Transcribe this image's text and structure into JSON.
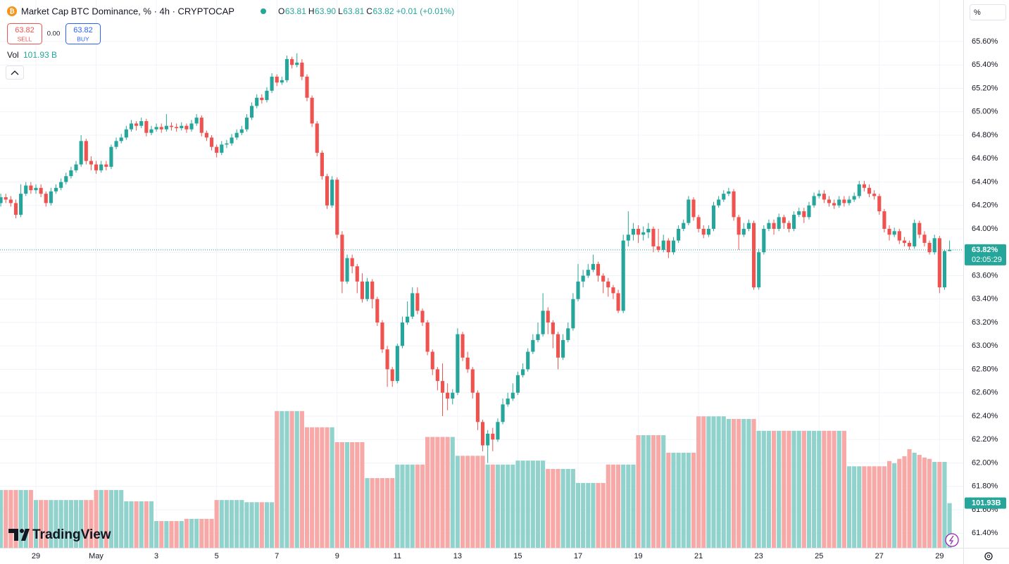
{
  "chart_data": {
    "type": "candlestick",
    "title": "Market Cap BTC Dominance, % · 4h · CRYPTOCAP",
    "ohlc_legend": [
      {
        "label": "O",
        "value": "63.81"
      },
      {
        "label": "H",
        "value": "63.90"
      },
      {
        "label": "L",
        "value": "63.81"
      },
      {
        "label": "C",
        "value": "63.82"
      }
    ],
    "change_label": "+0.01 (+0.01%)",
    "sell": {
      "price": "63.82",
      "label": "SELL"
    },
    "spread": "0.00",
    "buy": {
      "price": "63.82",
      "label": "BUY"
    },
    "volume_legend": {
      "label": "Vol",
      "value": "101.93 B"
    },
    "scale_button": "%",
    "price_tag": "63.82%",
    "countdown": "02:05:29",
    "volume_tag": "101.93B",
    "brand": "TradingView",
    "up_color": "#26a69a",
    "down_color": "#ef5350",
    "volume_up_color": "#92d2cc",
    "volume_down_color": "#f7a9a7",
    "grid": true,
    "ylim": [
      61.275,
      65.955
    ],
    "yticks": [
      {
        "value": 61.4,
        "label": "61.40%"
      },
      {
        "value": 61.6,
        "label": "61.60%"
      },
      {
        "value": 61.8,
        "label": "61.80%"
      },
      {
        "value": 62.0,
        "label": "62.00%"
      },
      {
        "value": 62.2,
        "label": "62.20%"
      },
      {
        "value": 62.4,
        "label": "62.40%"
      },
      {
        "value": 62.6,
        "label": "62.60%"
      },
      {
        "value": 62.8,
        "label": "62.80%"
      },
      {
        "value": 63.0,
        "label": "63.00%"
      },
      {
        "value": 63.2,
        "label": "63.20%"
      },
      {
        "value": 63.4,
        "label": "63.40%"
      },
      {
        "value": 63.6,
        "label": "63.60%"
      },
      {
        "value": 63.8,
        "label": "63.80%"
      },
      {
        "value": 64.0,
        "label": "64.00%"
      },
      {
        "value": 64.2,
        "label": "64.20%"
      },
      {
        "value": 64.4,
        "label": "64.40%"
      },
      {
        "value": 64.6,
        "label": "64.60%"
      },
      {
        "value": 64.8,
        "label": "64.80%"
      },
      {
        "value": 65.0,
        "label": "65.00%"
      },
      {
        "value": 65.2,
        "label": "65.20%"
      },
      {
        "value": 65.4,
        "label": "65.40%"
      },
      {
        "value": 65.6,
        "label": "65.60%"
      }
    ],
    "xlim": [
      -0.153,
      191.72
    ],
    "xticks": [
      {
        "value": 7,
        "label": "29"
      },
      {
        "value": 19,
        "label": "May"
      },
      {
        "value": 31,
        "label": "3"
      },
      {
        "value": 43,
        "label": "5"
      },
      {
        "value": 55,
        "label": "7"
      },
      {
        "value": 67,
        "label": "9"
      },
      {
        "value": 79,
        "label": "11"
      },
      {
        "value": 91,
        "label": "13"
      },
      {
        "value": 103,
        "label": "15"
      },
      {
        "value": 115,
        "label": "17"
      },
      {
        "value": 127,
        "label": "19"
      },
      {
        "value": 139,
        "label": "21"
      },
      {
        "value": 151,
        "label": "23"
      },
      {
        "value": 163,
        "label": "25"
      },
      {
        "value": 175,
        "label": "27"
      },
      {
        "value": 187,
        "label": "29"
      }
    ],
    "volume_ylim": [
      0,
      1250
    ],
    "candles": [
      [
        64.22,
        64.3,
        64.19,
        64.27
      ],
      [
        64.27,
        64.3,
        64.22,
        64.25
      ],
      [
        64.25,
        64.28,
        64.19,
        64.22
      ],
      [
        64.22,
        64.25,
        64.09,
        64.12
      ],
      [
        64.12,
        64.38,
        64.1,
        64.3
      ],
      [
        64.3,
        64.4,
        64.28,
        64.37
      ],
      [
        64.37,
        64.4,
        64.3,
        64.33
      ],
      [
        64.33,
        64.38,
        64.3,
        64.35
      ],
      [
        64.35,
        64.38,
        64.27,
        64.3
      ],
      [
        64.3,
        64.32,
        64.19,
        64.22
      ],
      [
        64.22,
        64.35,
        64.2,
        64.32
      ],
      [
        64.32,
        64.38,
        64.3,
        64.35
      ],
      [
        64.35,
        64.43,
        64.33,
        64.4
      ],
      [
        64.4,
        64.48,
        64.38,
        64.45
      ],
      [
        64.45,
        64.53,
        64.43,
        64.5
      ],
      [
        64.5,
        64.58,
        64.48,
        64.55
      ],
      [
        64.55,
        64.8,
        64.53,
        64.75
      ],
      [
        64.75,
        64.77,
        64.55,
        64.58
      ],
      [
        64.58,
        64.62,
        64.5,
        64.55
      ],
      [
        64.55,
        64.58,
        64.47,
        64.5
      ],
      [
        64.5,
        64.58,
        64.48,
        64.55
      ],
      [
        64.55,
        64.58,
        64.5,
        64.53
      ],
      [
        64.53,
        64.72,
        64.51,
        64.7
      ],
      [
        64.7,
        64.78,
        64.68,
        64.75
      ],
      [
        64.75,
        64.81,
        64.73,
        64.78
      ],
      [
        64.78,
        64.88,
        64.76,
        64.85
      ],
      [
        64.85,
        64.93,
        64.83,
        64.9
      ],
      [
        64.9,
        64.92,
        64.84,
        64.88
      ],
      [
        64.88,
        64.95,
        64.86,
        64.92
      ],
      [
        64.92,
        64.94,
        64.79,
        64.82
      ],
      [
        64.82,
        64.88,
        64.8,
        64.85
      ],
      [
        64.85,
        64.9,
        64.83,
        64.87
      ],
      [
        64.87,
        64.9,
        64.82,
        64.85
      ],
      [
        64.85,
        64.98,
        64.83,
        64.88
      ],
      [
        64.88,
        64.91,
        64.84,
        64.87
      ],
      [
        64.87,
        64.9,
        64.83,
        64.86
      ],
      [
        64.86,
        64.91,
        64.84,
        64.88
      ],
      [
        64.88,
        64.9,
        64.82,
        64.85
      ],
      [
        64.85,
        64.93,
        64.83,
        64.9
      ],
      [
        64.9,
        64.98,
        64.88,
        64.95
      ],
      [
        64.95,
        64.97,
        64.79,
        64.82
      ],
      [
        64.82,
        64.84,
        64.75,
        64.78
      ],
      [
        64.78,
        64.8,
        64.67,
        64.7
      ],
      [
        64.7,
        64.72,
        64.61,
        64.65
      ],
      [
        64.65,
        64.75,
        64.63,
        64.72
      ],
      [
        64.72,
        64.76,
        64.69,
        64.73
      ],
      [
        64.73,
        64.81,
        64.71,
        64.78
      ],
      [
        64.78,
        64.85,
        64.76,
        64.82
      ],
      [
        64.82,
        64.88,
        64.8,
        64.85
      ],
      [
        64.85,
        64.98,
        64.83,
        64.95
      ],
      [
        64.95,
        65.08,
        64.93,
        65.05
      ],
      [
        65.05,
        65.15,
        65.03,
        65.12
      ],
      [
        65.12,
        65.15,
        65.07,
        65.1
      ],
      [
        65.1,
        65.21,
        65.08,
        65.18
      ],
      [
        65.18,
        65.33,
        65.16,
        65.3
      ],
      [
        65.3,
        65.32,
        65.22,
        65.25
      ],
      [
        65.25,
        65.3,
        65.23,
        65.27
      ],
      [
        65.27,
        65.48,
        65.25,
        65.45
      ],
      [
        65.45,
        65.47,
        65.37,
        65.4
      ],
      [
        65.4,
        65.5,
        65.38,
        65.42
      ],
      [
        65.42,
        65.45,
        65.27,
        65.3
      ],
      [
        65.3,
        65.32,
        65.09,
        65.12
      ],
      [
        65.12,
        65.14,
        64.87,
        64.9
      ],
      [
        64.9,
        64.92,
        64.62,
        64.65
      ],
      [
        64.65,
        64.67,
        64.42,
        64.45
      ],
      [
        64.45,
        64.47,
        64.17,
        64.2
      ],
      [
        64.2,
        64.45,
        64.18,
        64.42
      ],
      [
        64.42,
        64.44,
        63.92,
        63.95
      ],
      [
        63.95,
        63.98,
        63.45,
        63.55
      ],
      [
        63.55,
        63.78,
        63.53,
        63.75
      ],
      [
        63.75,
        63.78,
        63.62,
        63.68
      ],
      [
        63.68,
        63.7,
        63.45,
        63.55
      ],
      [
        63.55,
        63.62,
        63.37,
        63.4
      ],
      [
        63.4,
        63.58,
        63.38,
        63.55
      ],
      [
        63.55,
        63.57,
        63.32,
        63.4
      ],
      [
        63.4,
        63.42,
        63.17,
        63.2
      ],
      [
        63.2,
        63.22,
        62.94,
        62.97
      ],
      [
        62.97,
        63.0,
        62.65,
        62.8
      ],
      [
        62.8,
        62.82,
        62.65,
        62.7
      ],
      [
        62.7,
        63.02,
        62.68,
        63.0
      ],
      [
        63.0,
        63.25,
        62.98,
        63.2
      ],
      [
        63.2,
        63.38,
        63.18,
        63.25
      ],
      [
        63.25,
        63.5,
        63.23,
        63.45
      ],
      [
        63.45,
        63.5,
        63.27,
        63.3
      ],
      [
        63.3,
        63.32,
        63.17,
        63.2
      ],
      [
        63.2,
        63.22,
        62.92,
        62.95
      ],
      [
        62.95,
        62.97,
        62.75,
        62.8
      ],
      [
        62.8,
        62.82,
        62.62,
        62.7
      ],
      [
        62.7,
        62.85,
        62.4,
        62.6
      ],
      [
        62.6,
        62.68,
        62.45,
        62.55
      ],
      [
        62.55,
        62.63,
        62.5,
        62.6
      ],
      [
        62.6,
        63.15,
        62.58,
        63.1
      ],
      [
        63.1,
        63.12,
        62.87,
        62.9
      ],
      [
        62.9,
        62.95,
        62.77,
        62.8
      ],
      [
        62.8,
        62.82,
        62.55,
        62.6
      ],
      [
        62.6,
        62.62,
        62.28,
        62.35
      ],
      [
        62.35,
        62.37,
        62.1,
        62.15
      ],
      [
        62.15,
        62.28,
        62.0,
        62.25
      ],
      [
        62.25,
        62.3,
        62.1,
        62.2
      ],
      [
        62.2,
        62.38,
        62.18,
        62.35
      ],
      [
        62.35,
        62.55,
        62.33,
        62.5
      ],
      [
        62.5,
        62.6,
        62.48,
        62.55
      ],
      [
        62.55,
        62.68,
        62.53,
        62.6
      ],
      [
        62.6,
        62.78,
        62.58,
        62.75
      ],
      [
        62.75,
        62.85,
        62.73,
        62.8
      ],
      [
        62.8,
        62.98,
        62.78,
        62.95
      ],
      [
        62.95,
        63.1,
        62.93,
        63.05
      ],
      [
        63.05,
        63.2,
        63.03,
        63.1
      ],
      [
        63.1,
        63.45,
        63.08,
        63.3
      ],
      [
        63.3,
        63.33,
        63.1,
        63.2
      ],
      [
        63.2,
        63.22,
        62.98,
        63.1
      ],
      [
        63.1,
        63.12,
        62.8,
        62.9
      ],
      [
        62.9,
        63.1,
        62.88,
        63.05
      ],
      [
        63.05,
        63.2,
        63.03,
        63.15
      ],
      [
        63.15,
        63.45,
        63.13,
        63.4
      ],
      [
        63.4,
        63.7,
        63.38,
        63.55
      ],
      [
        63.55,
        63.65,
        63.5,
        63.6
      ],
      [
        63.6,
        63.7,
        63.58,
        63.65
      ],
      [
        63.65,
        63.78,
        63.63,
        63.7
      ],
      [
        63.7,
        63.72,
        63.55,
        63.6
      ],
      [
        63.6,
        63.62,
        63.45,
        63.55
      ],
      [
        63.55,
        63.58,
        63.42,
        63.5
      ],
      [
        63.5,
        63.52,
        63.4,
        63.45
      ],
      [
        63.45,
        63.48,
        63.28,
        63.3
      ],
      [
        63.3,
        63.95,
        63.28,
        63.9
      ],
      [
        63.9,
        64.15,
        63.85,
        63.95
      ],
      [
        63.95,
        64.05,
        63.9,
        64.0
      ],
      [
        64.0,
        64.03,
        63.88,
        63.95
      ],
      [
        63.95,
        64.02,
        63.9,
        63.97
      ],
      [
        63.97,
        64.05,
        63.92,
        64.0
      ],
      [
        64.0,
        64.02,
        63.8,
        63.85
      ],
      [
        63.85,
        64.0,
        63.8,
        63.82
      ],
      [
        63.82,
        63.95,
        63.8,
        63.9
      ],
      [
        63.9,
        63.92,
        63.75,
        63.8
      ],
      [
        63.8,
        63.93,
        63.78,
        63.9
      ],
      [
        63.9,
        64.03,
        63.88,
        64.0
      ],
      [
        64.0,
        64.08,
        63.98,
        64.05
      ],
      [
        64.05,
        64.28,
        64.03,
        64.25
      ],
      [
        64.25,
        64.27,
        64.07,
        64.1
      ],
      [
        64.1,
        64.12,
        63.97,
        64.0
      ],
      [
        64.0,
        64.03,
        63.92,
        63.95
      ],
      [
        63.95,
        64.03,
        63.93,
        64.0
      ],
      [
        64.0,
        64.23,
        63.98,
        64.2
      ],
      [
        64.2,
        64.28,
        64.18,
        64.25
      ],
      [
        64.25,
        64.33,
        64.23,
        64.3
      ],
      [
        64.3,
        64.35,
        64.28,
        64.32
      ],
      [
        64.32,
        64.34,
        64.07,
        64.1
      ],
      [
        64.1,
        64.12,
        63.82,
        63.95
      ],
      [
        63.95,
        64.05,
        63.93,
        64.0
      ],
      [
        64.0,
        64.08,
        63.98,
        64.05
      ],
      [
        64.05,
        64.07,
        63.48,
        63.5
      ],
      [
        63.5,
        63.83,
        63.48,
        63.8
      ],
      [
        63.8,
        64.03,
        63.78,
        64.0
      ],
      [
        64.0,
        64.08,
        63.98,
        64.05
      ],
      [
        64.05,
        64.08,
        63.95,
        64.0
      ],
      [
        64.0,
        64.13,
        63.98,
        64.1
      ],
      [
        64.1,
        64.12,
        64.0,
        64.05
      ],
      [
        64.05,
        64.07,
        63.97,
        64.0
      ],
      [
        64.0,
        64.15,
        63.98,
        64.12
      ],
      [
        64.12,
        64.18,
        64.1,
        64.15
      ],
      [
        64.15,
        64.18,
        64.05,
        64.1
      ],
      [
        64.1,
        64.23,
        64.08,
        64.2
      ],
      [
        64.2,
        64.31,
        64.18,
        64.28
      ],
      [
        64.28,
        64.33,
        64.26,
        64.3
      ],
      [
        64.3,
        64.33,
        64.22,
        64.25
      ],
      [
        64.25,
        64.28,
        64.19,
        64.22
      ],
      [
        64.22,
        64.25,
        64.17,
        64.2
      ],
      [
        64.2,
        64.28,
        64.18,
        64.25
      ],
      [
        64.25,
        64.28,
        64.19,
        64.22
      ],
      [
        64.22,
        64.28,
        64.2,
        64.25
      ],
      [
        64.25,
        64.31,
        64.23,
        64.28
      ],
      [
        64.28,
        64.41,
        64.26,
        64.38
      ],
      [
        64.38,
        64.41,
        64.32,
        64.35
      ],
      [
        64.35,
        64.38,
        64.27,
        64.3
      ],
      [
        64.3,
        64.33,
        64.25,
        64.28
      ],
      [
        64.28,
        64.3,
        64.12,
        64.15
      ],
      [
        64.15,
        64.17,
        63.97,
        64.0
      ],
      [
        64.0,
        64.03,
        63.9,
        63.95
      ],
      [
        63.95,
        64.01,
        63.93,
        63.98
      ],
      [
        63.98,
        64.0,
        63.87,
        63.9
      ],
      [
        63.9,
        63.93,
        63.85,
        63.88
      ],
      [
        63.88,
        63.9,
        63.82,
        63.85
      ],
      [
        63.85,
        64.08,
        63.83,
        64.05
      ],
      [
        64.05,
        64.07,
        63.92,
        63.95
      ],
      [
        63.95,
        63.98,
        63.85,
        63.88
      ],
      [
        63.88,
        63.9,
        63.78,
        63.8
      ],
      [
        63.8,
        63.95,
        63.78,
        63.92
      ],
      [
        63.92,
        63.94,
        63.45,
        63.5
      ],
      [
        63.5,
        63.82,
        63.48,
        63.81
      ],
      [
        63.81,
        63.9,
        63.81,
        63.82
      ]
    ],
    "volume": [
      132,
      132,
      132,
      132,
      132,
      132,
      132,
      109,
      109,
      109,
      109,
      109,
      109,
      109,
      109,
      109,
      109,
      109,
      109,
      132,
      132,
      132,
      132,
      132,
      132,
      106,
      106,
      106,
      106,
      106,
      106,
      61,
      61,
      61,
      61,
      61,
      61,
      66,
      66,
      66,
      66,
      66,
      66,
      109,
      109,
      109,
      109,
      109,
      109,
      104,
      104,
      104,
      104,
      104,
      104,
      312,
      312,
      312,
      312,
      312,
      312,
      275,
      275,
      275,
      275,
      275,
      275,
      241,
      241,
      241,
      241,
      241,
      241,
      159,
      159,
      159,
      159,
      159,
      159,
      190,
      190,
      190,
      190,
      190,
      190,
      253,
      253,
      253,
      253,
      253,
      253,
      210,
      210,
      210,
      210,
      210,
      210,
      190,
      190,
      190,
      190,
      190,
      190,
      199,
      199,
      199,
      199,
      199,
      199,
      180,
      180,
      180,
      180,
      180,
      180,
      148,
      148,
      148,
      148,
      148,
      148,
      190,
      190,
      190,
      190,
      190,
      190,
      257,
      257,
      257,
      257,
      257,
      257,
      217,
      217,
      217,
      217,
      217,
      217,
      300,
      300,
      300,
      300,
      300,
      300,
      294,
      294,
      294,
      294,
      294,
      294,
      267,
      267,
      267,
      267,
      267,
      267,
      267,
      267,
      267,
      267,
      267,
      267,
      267,
      267,
      267,
      267,
      267,
      267,
      186,
      186,
      186,
      186,
      186,
      186,
      186,
      186,
      198,
      193,
      203,
      209,
      225,
      217,
      212,
      206,
      203,
      196,
      196,
      196,
      101.93
    ]
  }
}
